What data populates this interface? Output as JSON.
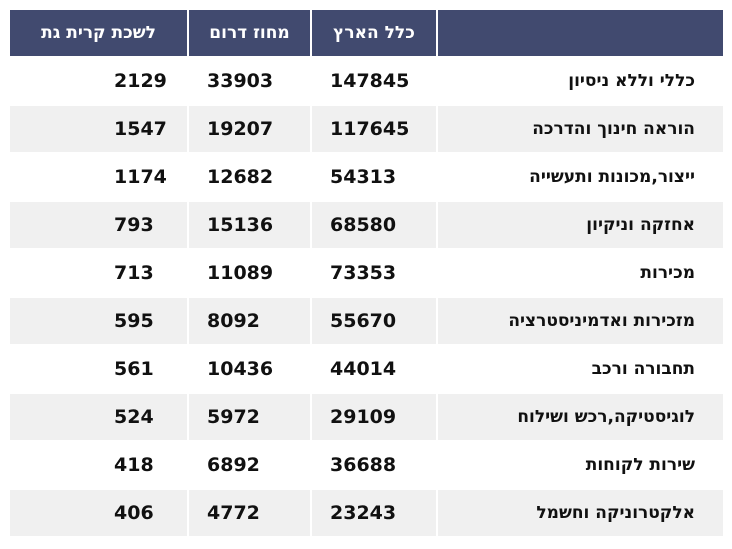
{
  "chart_data": {
    "type": "table",
    "columns": [
      "",
      "כלל הארץ",
      "מחוז דרום",
      "לשכת קרית גת"
    ],
    "rows": [
      {
        "category": "כללי וללא ניסיון",
        "values": [
          147845,
          33903,
          2129
        ]
      },
      {
        "category": "הוראה חינוך והדרכה",
        "values": [
          117645,
          19207,
          1547
        ]
      },
      {
        "category": "ייצור,מכונות ותעשייה",
        "values": [
          54313,
          12682,
          1174
        ]
      },
      {
        "category": "אחזקה וניקיון",
        "values": [
          68580,
          15136,
          793
        ]
      },
      {
        "category": "מכירות",
        "values": [
          73353,
          11089,
          713
        ]
      },
      {
        "category": "מזכירות ואדמיניסטרציה",
        "values": [
          55670,
          8092,
          595
        ]
      },
      {
        "category": "תחבורה ורכב",
        "values": [
          44014,
          10436,
          561
        ]
      },
      {
        "category": "לוגיסטיקה,רכש ושילוח",
        "values": [
          29109,
          5972,
          524
        ]
      },
      {
        "category": "שירות לקוחות",
        "values": [
          36688,
          6892,
          418
        ]
      },
      {
        "category": "אלקטרוניקה וחשמל",
        "values": [
          23243,
          4772,
          406
        ]
      }
    ],
    "colors": {
      "header_bg": "#414a6f",
      "header_text": "#ffffff",
      "row_alt_bg": "#f0f0f0"
    }
  }
}
